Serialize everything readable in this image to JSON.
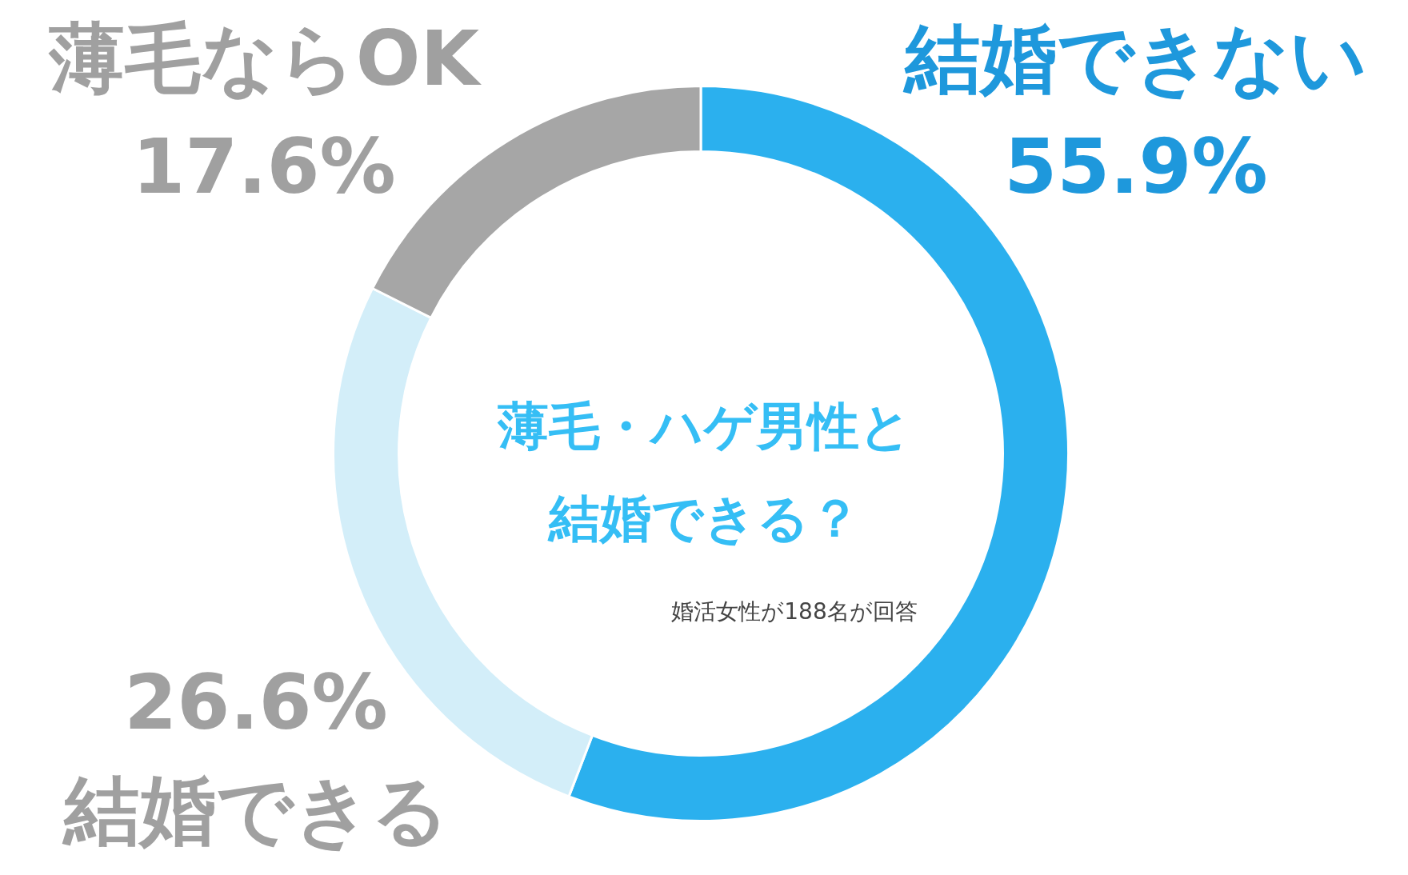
{
  "chart_data": {
    "type": "donut",
    "title": "薄毛・ハゲ男性と結婚できる？",
    "categories": [
      "結婚できない",
      "結婚できる",
      "薄毛ならOK"
    ],
    "values": [
      55.9,
      26.6,
      17.6
    ],
    "value_labels": [
      "55.9%",
      "26.6%",
      "17.6%"
    ],
    "colors": [
      "#2bb0ee",
      "#d3eef9",
      "#a6a6a6"
    ],
    "annotations": [
      "婚活女性が188名が回答"
    ]
  }
}
